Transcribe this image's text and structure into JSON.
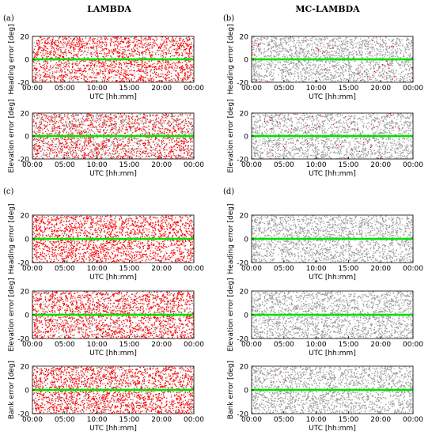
{
  "figure": {
    "column_titles": [
      "LAMBDA",
      "MC-LAMBDA"
    ],
    "panel_labels": [
      "(a)",
      "(b)",
      "(c)",
      "(d)"
    ]
  },
  "colors": {
    "red": "#ff0000",
    "gray": "#999999",
    "green": "#00e000"
  },
  "chart_data": [
    {
      "type": "scatter",
      "panel": "(a)",
      "column": "LAMBDA",
      "ylabel": "Heading error [deg]",
      "xlabel": "UTC [hh:mm]",
      "x_ticks": [
        "00:00",
        "05:00",
        "10:00",
        "15:00",
        "20:00",
        "00:00"
      ],
      "y_ticks": [
        "20",
        "0",
        "-20"
      ],
      "xlim": [
        0,
        24
      ],
      "ylim": [
        -20,
        20
      ],
      "series": [
        {
          "color": "red",
          "density": 0.85,
          "spread_deg": 20
        },
        {
          "color": "gray",
          "density": 0.12,
          "spread_deg": 20
        },
        {
          "color": "green",
          "density": 1.0,
          "spread_deg": 0.4
        }
      ]
    },
    {
      "type": "scatter",
      "panel": "(a)",
      "column": "LAMBDA",
      "ylabel": "Elevation error [deg]",
      "xlabel": "UTC [hh:mm]",
      "x_ticks": [
        "00:00",
        "05:00",
        "10:00",
        "15:00",
        "20:00",
        "00:00"
      ],
      "y_ticks": [
        "20",
        "0",
        "-20"
      ],
      "xlim": [
        0,
        24
      ],
      "ylim": [
        -20,
        20
      ],
      "series": [
        {
          "color": "red",
          "density": 0.7,
          "spread_deg": 20
        },
        {
          "color": "gray",
          "density": 0.4,
          "spread_deg": 20
        },
        {
          "color": "green",
          "density": 1.0,
          "spread_deg": 0.4
        }
      ]
    },
    {
      "type": "scatter",
      "panel": "(b)",
      "column": "MC-LAMBDA",
      "ylabel": "Heading error [deg]",
      "xlabel": "UTC [hh:mm]",
      "x_ticks": [
        "00:00",
        "05:00",
        "10:00",
        "15:00",
        "20:00",
        "00:00"
      ],
      "y_ticks": [
        "20",
        "0",
        "-20"
      ],
      "xlim": [
        0,
        24
      ],
      "ylim": [
        -20,
        20
      ],
      "series": [
        {
          "color": "gray",
          "density": 0.85,
          "spread_deg": 20
        },
        {
          "color": "red",
          "density": 0.03,
          "spread_deg": 20
        },
        {
          "color": "green",
          "density": 1.0,
          "spread_deg": 0.4
        }
      ]
    },
    {
      "type": "scatter",
      "panel": "(b)",
      "column": "MC-LAMBDA",
      "ylabel": "Elevation error [deg]",
      "xlabel": "UTC [hh:mm]",
      "x_ticks": [
        "00:00",
        "05:00",
        "10:00",
        "15:00",
        "20:00",
        "00:00"
      ],
      "y_ticks": [
        "20",
        "0",
        "-20"
      ],
      "xlim": [
        0,
        24
      ],
      "ylim": [
        -20,
        20
      ],
      "series": [
        {
          "color": "gray",
          "density": 0.8,
          "spread_deg": 20
        },
        {
          "color": "red",
          "density": 0.03,
          "spread_deg": 20
        },
        {
          "color": "green",
          "density": 1.0,
          "spread_deg": 0.4
        }
      ]
    },
    {
      "type": "scatter",
      "panel": "(c)",
      "column": "LAMBDA",
      "ylabel": "Heading error [deg]",
      "xlabel": "UTC [hh:mm]",
      "x_ticks": [
        "00:00",
        "05:00",
        "10:00",
        "15:00",
        "20:00",
        "00:00"
      ],
      "y_ticks": [
        "20",
        "0",
        "-20"
      ],
      "xlim": [
        0,
        24
      ],
      "ylim": [
        -20,
        20
      ],
      "series": [
        {
          "color": "red",
          "density": 0.9,
          "spread_deg": 20
        },
        {
          "color": "gray",
          "density": 0.05,
          "spread_deg": 20
        },
        {
          "color": "green",
          "density": 1.0,
          "spread_deg": 0.4
        }
      ]
    },
    {
      "type": "scatter",
      "panel": "(c)",
      "column": "LAMBDA",
      "ylabel": "Elevation error [deg]",
      "xlabel": "UTC [hh:mm]",
      "x_ticks": [
        "00:00",
        "05:00",
        "10:00",
        "15:00",
        "20:00",
        "00:00"
      ],
      "y_ticks": [
        "20",
        "0",
        "-20"
      ],
      "xlim": [
        0,
        24
      ],
      "ylim": [
        -20,
        20
      ],
      "series": [
        {
          "color": "red",
          "density": 0.85,
          "spread_deg": 20
        },
        {
          "color": "gray",
          "density": 0.15,
          "spread_deg": 20
        },
        {
          "color": "green",
          "density": 1.0,
          "spread_deg": 0.4
        }
      ]
    },
    {
      "type": "scatter",
      "panel": "(c)",
      "column": "LAMBDA",
      "ylabel": "Bank error [deg]",
      "xlabel": "UTC [hh:mm]",
      "x_ticks": [
        "00:00",
        "05:00",
        "10:00",
        "15:00",
        "20:00",
        "00:00"
      ],
      "y_ticks": [
        "20",
        "0",
        "-20"
      ],
      "xlim": [
        0,
        24
      ],
      "ylim": [
        -20,
        20
      ],
      "series": [
        {
          "color": "red",
          "density": 0.9,
          "spread_deg": 20
        },
        {
          "color": "gray",
          "density": 0.15,
          "spread_deg": 20
        },
        {
          "color": "green",
          "density": 1.0,
          "spread_deg": 0.4
        }
      ]
    },
    {
      "type": "scatter",
      "panel": "(d)",
      "column": "MC-LAMBDA",
      "ylabel": "Heading error [deg]",
      "xlabel": "UTC [hh:mm]",
      "x_ticks": [
        "00:00",
        "05:00",
        "10:00",
        "15:00",
        "20:00",
        "00:00"
      ],
      "y_ticks": [
        "20",
        "0",
        "-20"
      ],
      "xlim": [
        0,
        24
      ],
      "ylim": [
        -20,
        20
      ],
      "series": [
        {
          "color": "gray",
          "density": 0.85,
          "spread_deg": 20
        },
        {
          "color": "red",
          "density": 0.005,
          "spread_deg": 20
        },
        {
          "color": "green",
          "density": 1.0,
          "spread_deg": 0.4
        }
      ]
    },
    {
      "type": "scatter",
      "panel": "(d)",
      "column": "MC-LAMBDA",
      "ylabel": "Elevation error [deg]",
      "xlabel": "UTC [hh:mm]",
      "x_ticks": [
        "00:00",
        "05:00",
        "10:00",
        "15:00",
        "20:00",
        "00:00"
      ],
      "y_ticks": [
        "20",
        "0",
        "-20"
      ],
      "xlim": [
        0,
        24
      ],
      "ylim": [
        -20,
        20
      ],
      "series": [
        {
          "color": "gray",
          "density": 0.85,
          "spread_deg": 20
        },
        {
          "color": "red",
          "density": 0.002,
          "spread_deg": 20
        },
        {
          "color": "green",
          "density": 1.0,
          "spread_deg": 0.4
        }
      ]
    },
    {
      "type": "scatter",
      "panel": "(d)",
      "column": "MC-LAMBDA",
      "ylabel": "Bank error [deg]",
      "xlabel": "UTC [hh:mm]",
      "x_ticks": [
        "00:00",
        "05:00",
        "10:00",
        "15:00",
        "20:00",
        "00:00"
      ],
      "y_ticks": [
        "20",
        "0",
        "-20"
      ],
      "xlim": [
        0,
        24
      ],
      "ylim": [
        -20,
        20
      ],
      "series": [
        {
          "color": "gray",
          "density": 0.85,
          "spread_deg": 20
        },
        {
          "color": "red",
          "density": 0.002,
          "spread_deg": 20
        },
        {
          "color": "green",
          "density": 1.0,
          "spread_deg": 0.4
        }
      ]
    }
  ]
}
